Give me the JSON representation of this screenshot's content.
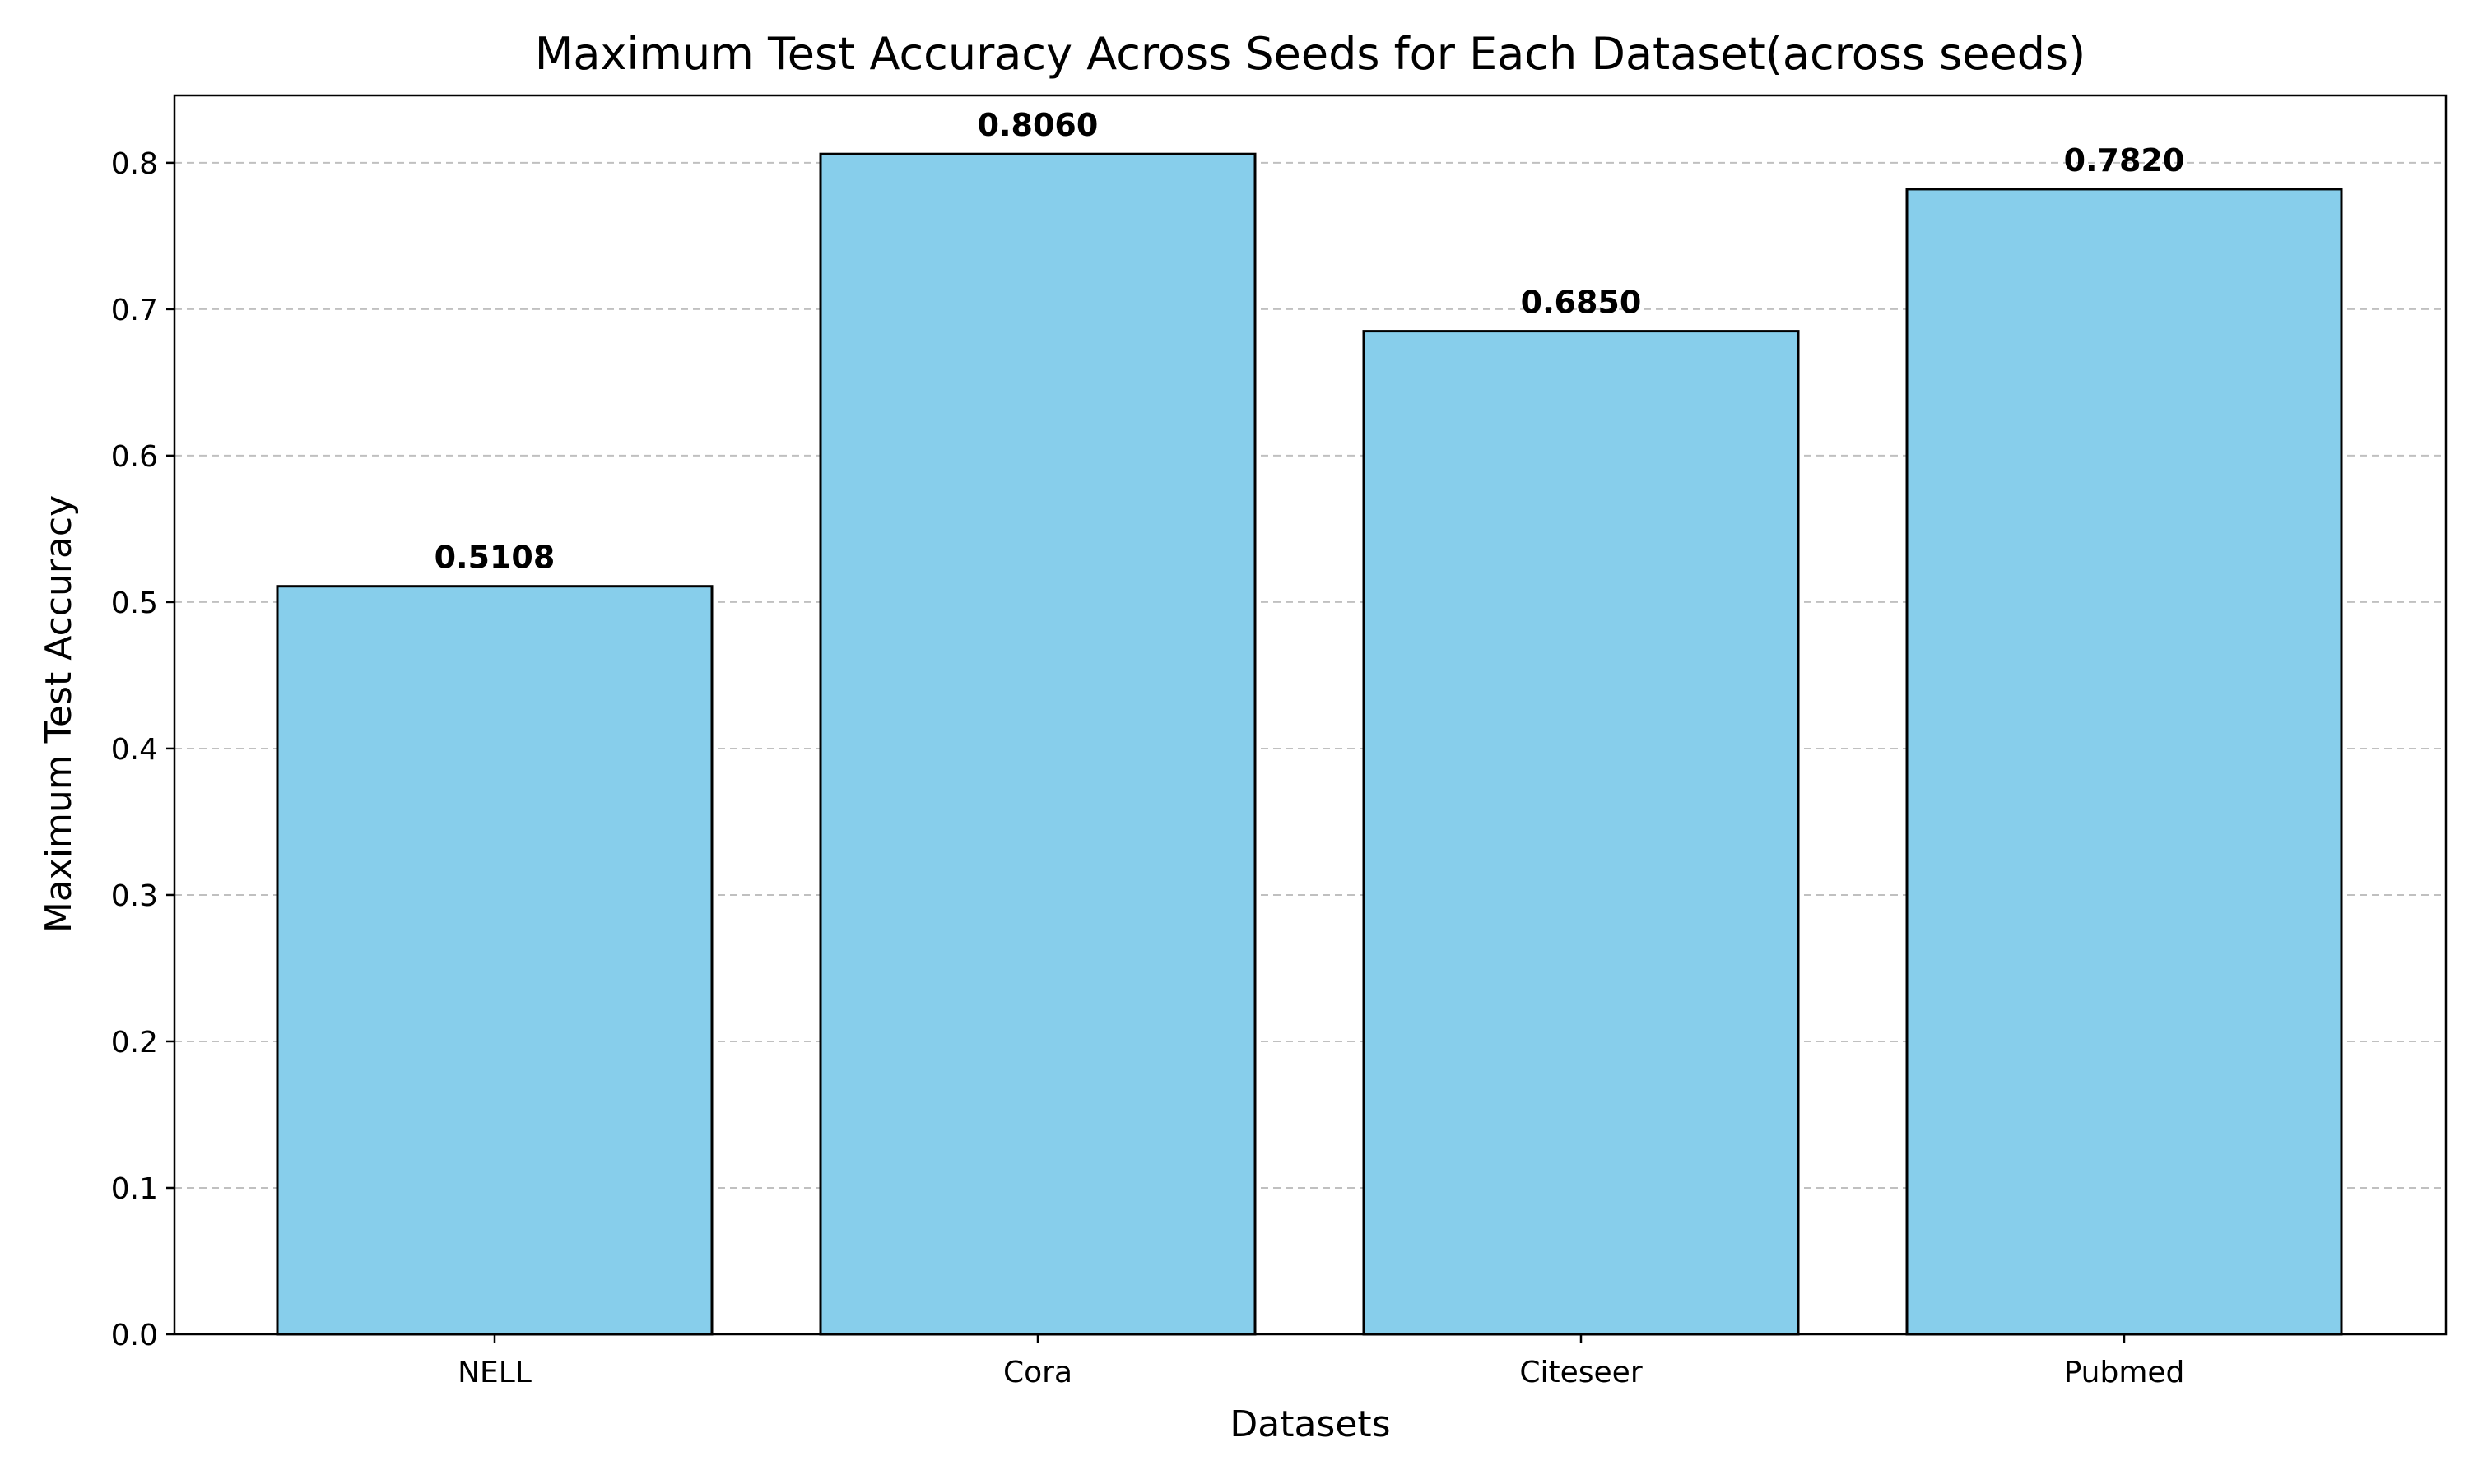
{
  "chart_data": {
    "type": "bar",
    "title": "Maximum Test Accuracy Across Seeds for Each Dataset(across seeds)",
    "xlabel": "Datasets",
    "ylabel": "Maximum Test Accuracy",
    "categories": [
      "NELL",
      "Cora",
      "Citeseer",
      "Pubmed"
    ],
    "values": [
      0.5108,
      0.806,
      0.685,
      0.782
    ],
    "value_labels": [
      "0.5108",
      "0.8060",
      "0.6850",
      "0.7820"
    ],
    "ylim": [
      0,
      0.846
    ],
    "yticks": [
      0.0,
      0.1,
      0.2,
      0.3,
      0.4,
      0.5,
      0.6,
      0.7,
      0.8
    ],
    "ytick_labels": [
      "0.0",
      "0.1",
      "0.2",
      "0.3",
      "0.4",
      "0.5",
      "0.6",
      "0.7",
      "0.8"
    ],
    "grid": "y-dashed",
    "legend": "none",
    "colors": {
      "bar_fill": "#87ceeb",
      "bar_edge": "#000000",
      "grid": "#c0c0c0",
      "axis": "#000000"
    }
  }
}
